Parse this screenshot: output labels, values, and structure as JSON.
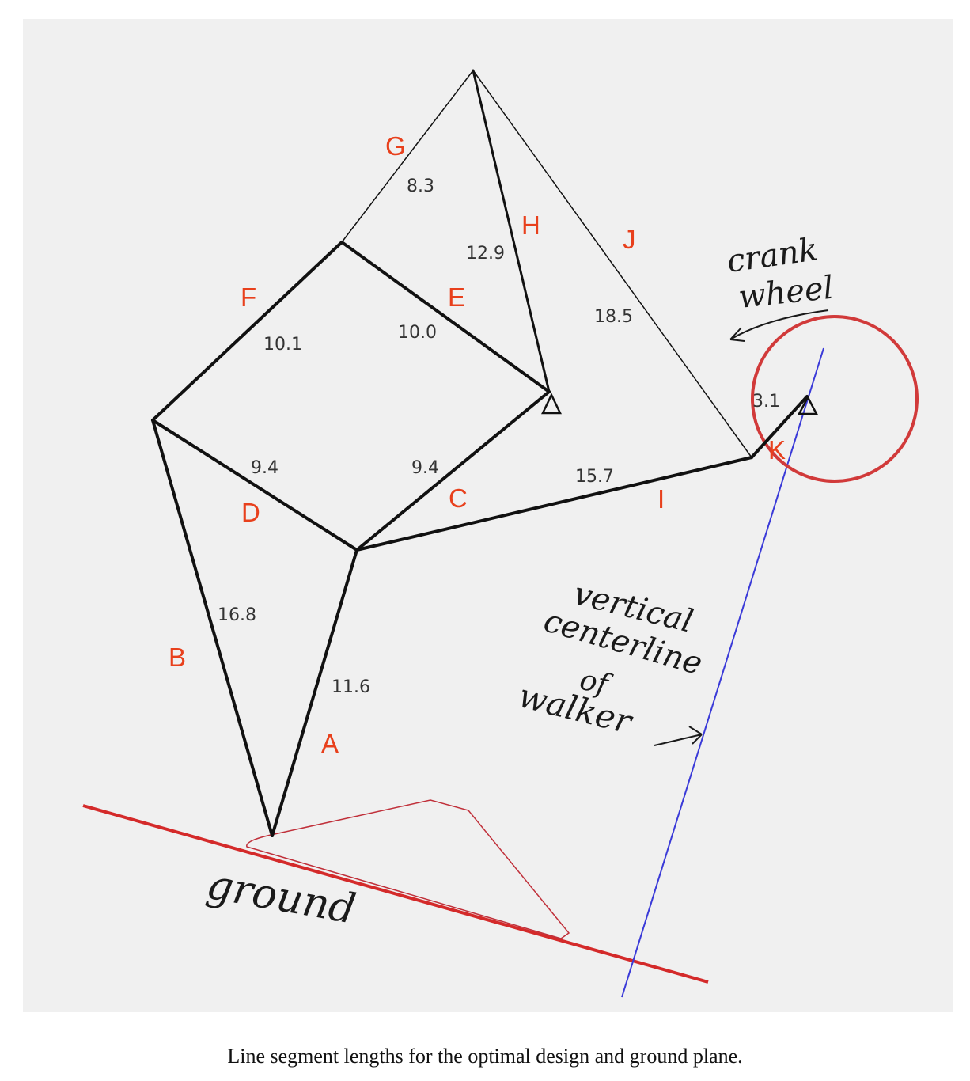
{
  "segments": [
    {
      "letter": "A",
      "length": "11.6"
    },
    {
      "letter": "B",
      "length": "16.8"
    },
    {
      "letter": "C",
      "length": "9.4"
    },
    {
      "letter": "D",
      "length": "9.4"
    },
    {
      "letter": "E",
      "length": "10.0"
    },
    {
      "letter": "F",
      "length": "10.1"
    },
    {
      "letter": "G",
      "length": "8.3"
    },
    {
      "letter": "H",
      "length": "12.9"
    },
    {
      "letter": "I",
      "length": "15.7"
    },
    {
      "letter": "J",
      "length": "18.5"
    },
    {
      "letter": "K",
      "length": "3.1"
    }
  ],
  "annotations": {
    "crank_wheel_line1": "crank",
    "crank_wheel_line2": "wheel",
    "centerline_line1": "vertical",
    "centerline_line2": "centerline",
    "centerline_line3": "of",
    "centerline_line4": "walker",
    "ground": "ground"
  },
  "colors": {
    "linkage": "#111111",
    "ground_line": "#d42a2a",
    "crank_circle": "#d13a3a",
    "centerline": "#3a3ad8",
    "foot_path": "#c0303a",
    "letters": "#e8401c"
  },
  "caption": "Line segment lengths for the optimal design and ground plane."
}
